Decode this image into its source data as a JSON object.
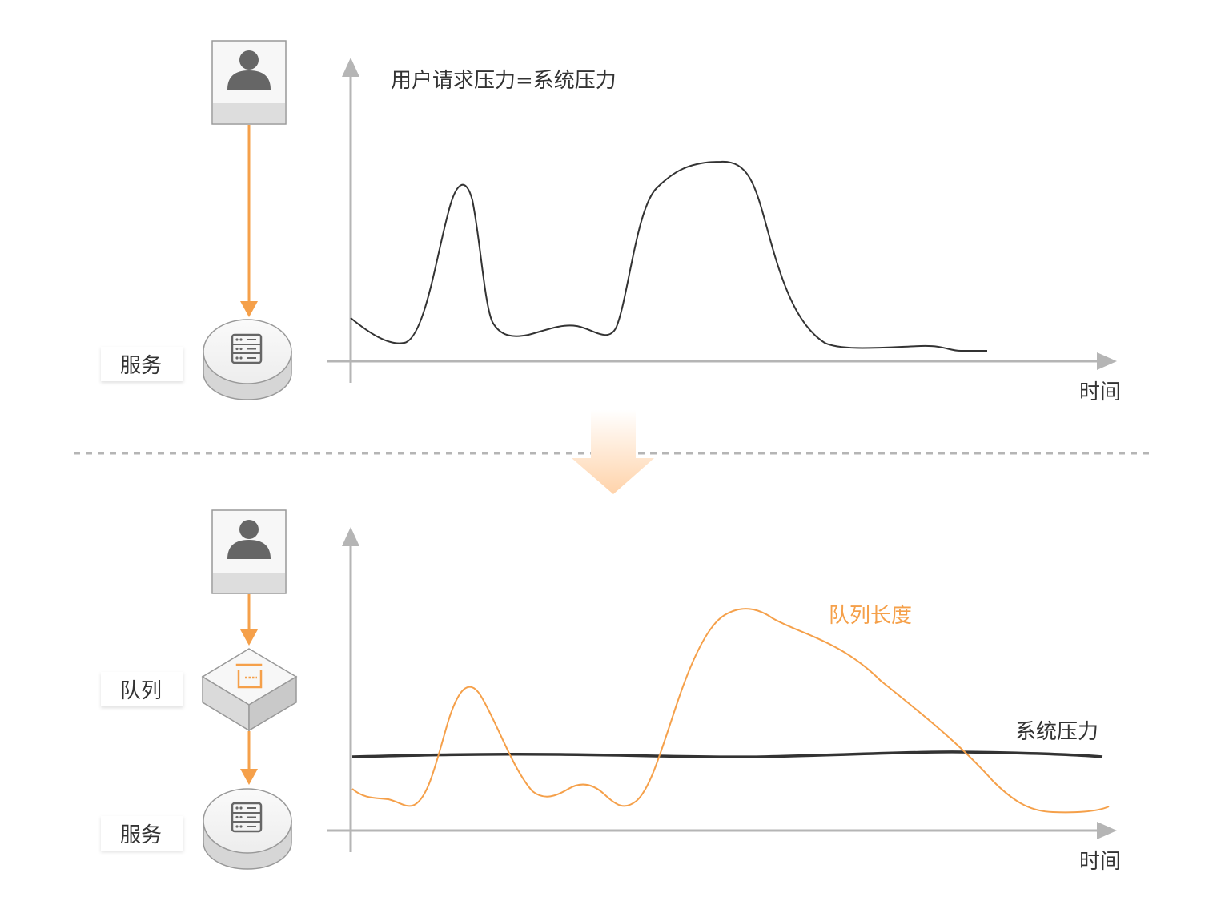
{
  "top": {
    "chart_label": "用户请求压力=系统压力",
    "x_axis_label": "时间",
    "service_label": "服务"
  },
  "bottom": {
    "queue_label": "队列",
    "service_label": "服务",
    "queue_length_label": "队列长度",
    "system_pressure_label": "系统压力",
    "x_axis_label": "时间"
  },
  "colors": {
    "accent": "#F5A04A",
    "arrow_fade": "#FFD3AA",
    "curve": "#333333",
    "axis": "#B5B5B5",
    "icon_gray": "#666666"
  },
  "icons": {
    "user": "user-icon",
    "server": "server-icon",
    "queue": "queue-icon"
  }
}
